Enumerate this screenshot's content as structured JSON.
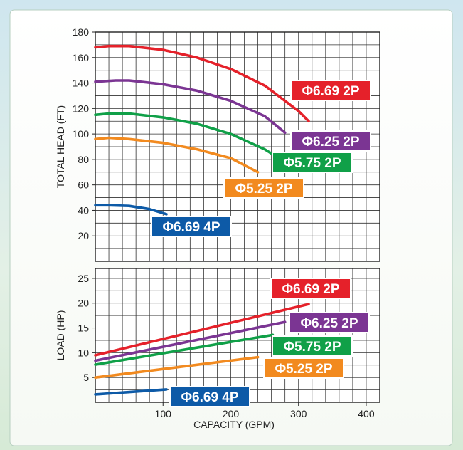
{
  "chart_data": [
    {
      "type": "line",
      "xlabel": "",
      "ylabel": "TOTAL HEAD (FT)",
      "xlim": [
        0,
        420
      ],
      "ylim": [
        0,
        180
      ],
      "yticks": [
        20,
        40,
        60,
        80,
        100,
        120,
        140,
        160,
        180
      ],
      "grid": true,
      "series": [
        {
          "name": "Φ6.69 2P",
          "color": "#e5212a",
          "label_bg": "#e5212a",
          "x": [
            0,
            20,
            50,
            100,
            150,
            200,
            250,
            300,
            315
          ],
          "y": [
            168,
            169,
            169,
            166,
            160,
            151,
            138,
            118,
            110
          ]
        },
        {
          "name": "Φ6.25 2P",
          "color": "#7b3593",
          "label_bg": "#7b3593",
          "x": [
            0,
            30,
            50,
            100,
            150,
            200,
            250,
            280
          ],
          "y": [
            141,
            142,
            142,
            139,
            134,
            126,
            114,
            101
          ]
        },
        {
          "name": "Φ5.75 2P",
          "color": "#10a048",
          "label_bg": "#10a048",
          "x": [
            0,
            20,
            50,
            100,
            150,
            200,
            250,
            262
          ],
          "y": [
            115,
            116,
            116,
            113,
            108,
            100,
            88,
            84
          ]
        },
        {
          "name": "Φ5.25 2P",
          "color": "#f28a1f",
          "label_bg": "#f28a1f",
          "x": [
            0,
            20,
            50,
            100,
            150,
            200,
            240
          ],
          "y": [
            96,
            97,
            96,
            93,
            88,
            81,
            70
          ]
        },
        {
          "name": "Φ6.69 4P",
          "color": "#0d5aa7",
          "label_bg": "#0d5aa7",
          "x": [
            0,
            20,
            50,
            80,
            105
          ],
          "y": [
            44,
            44,
            43.5,
            41,
            37
          ]
        }
      ]
    },
    {
      "type": "line",
      "xlabel": "CAPACITY (GPM)",
      "ylabel": "LOAD (HP)",
      "xlim": [
        0,
        420
      ],
      "ylim": [
        0,
        27
      ],
      "xticks": [
        100,
        200,
        300,
        400
      ],
      "yticks": [
        5,
        10,
        15,
        20,
        25
      ],
      "grid": true,
      "series": [
        {
          "name": "Φ6.69 2P",
          "color": "#e5212a",
          "x": [
            0,
            315
          ],
          "y": [
            9.5,
            19.8
          ]
        },
        {
          "name": "Φ6.25 2P",
          "color": "#7b3593",
          "x": [
            0,
            280
          ],
          "y": [
            8.4,
            16.2
          ]
        },
        {
          "name": "Φ5.75 2P",
          "color": "#10a048",
          "x": [
            0,
            262
          ],
          "y": [
            7.6,
            13.6
          ]
        },
        {
          "name": "Φ5.25 2P",
          "color": "#f28a1f",
          "x": [
            0,
            240
          ],
          "y": [
            5.0,
            9.1
          ]
        },
        {
          "name": "Φ6.69 4P",
          "color": "#0d5aa7",
          "x": [
            0,
            105
          ],
          "y": [
            1.6,
            2.6
          ]
        }
      ]
    }
  ]
}
